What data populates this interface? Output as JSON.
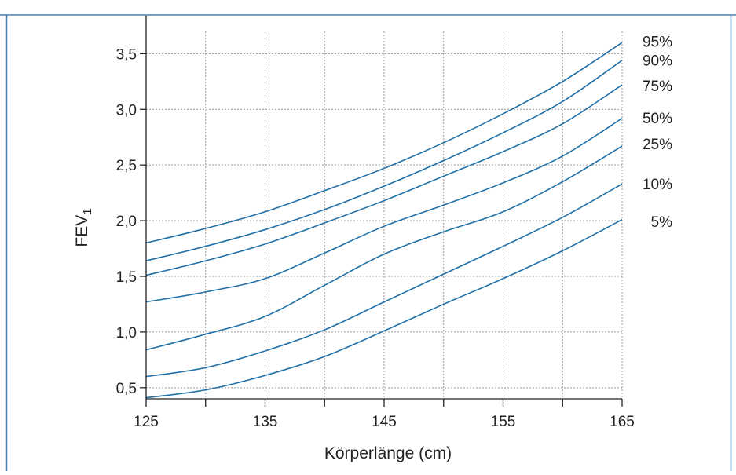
{
  "chart_data": {
    "type": "line",
    "title": "",
    "xlabel": "Körperlänge (cm)",
    "ylabel_main": "FEV",
    "ylabel_sub": "1",
    "xlim": [
      125,
      165
    ],
    "ylim": [
      0.4,
      3.7
    ],
    "xticks": [
      {
        "value": 125,
        "label": "125"
      },
      {
        "value": 135,
        "label": "135"
      },
      {
        "value": 145,
        "label": "145"
      },
      {
        "value": 155,
        "label": "155"
      },
      {
        "value": 165,
        "label": "165"
      }
    ],
    "yticks": [
      {
        "value": 0.5,
        "label": "0,5"
      },
      {
        "value": 1.0,
        "label": "1,0"
      },
      {
        "value": 1.5,
        "label": "1,5"
      },
      {
        "value": 2.0,
        "label": "2,0"
      },
      {
        "value": 2.5,
        "label": "2,5"
      },
      {
        "value": 3.0,
        "label": "3,0"
      },
      {
        "value": 3.5,
        "label": "3,5"
      }
    ],
    "grid": true,
    "line_color": "#1f6fa8",
    "x": [
      125,
      130,
      135,
      140,
      145,
      150,
      155,
      160,
      165
    ],
    "series": [
      {
        "name": "95%",
        "values": [
          1.8,
          1.93,
          2.08,
          2.27,
          2.47,
          2.7,
          2.96,
          3.25,
          3.6
        ]
      },
      {
        "name": "90%",
        "values": [
          1.64,
          1.77,
          1.92,
          2.1,
          2.31,
          2.54,
          2.79,
          3.07,
          3.44
        ]
      },
      {
        "name": "75%",
        "values": [
          1.51,
          1.64,
          1.79,
          1.98,
          2.18,
          2.4,
          2.62,
          2.87,
          3.22
        ]
      },
      {
        "name": "50%",
        "values": [
          1.27,
          1.36,
          1.48,
          1.71,
          1.95,
          2.14,
          2.34,
          2.58,
          2.92
        ]
      },
      {
        "name": "25%",
        "values": [
          0.84,
          0.98,
          1.14,
          1.42,
          1.7,
          1.9,
          2.08,
          2.35,
          2.67
        ]
      },
      {
        "name": "10%",
        "values": [
          0.6,
          0.68,
          0.83,
          1.02,
          1.27,
          1.52,
          1.77,
          2.03,
          2.33
        ]
      },
      {
        "name": "5%",
        "values": [
          0.41,
          0.48,
          0.61,
          0.78,
          1.01,
          1.25,
          1.48,
          1.73,
          2.01
        ]
      }
    ]
  }
}
